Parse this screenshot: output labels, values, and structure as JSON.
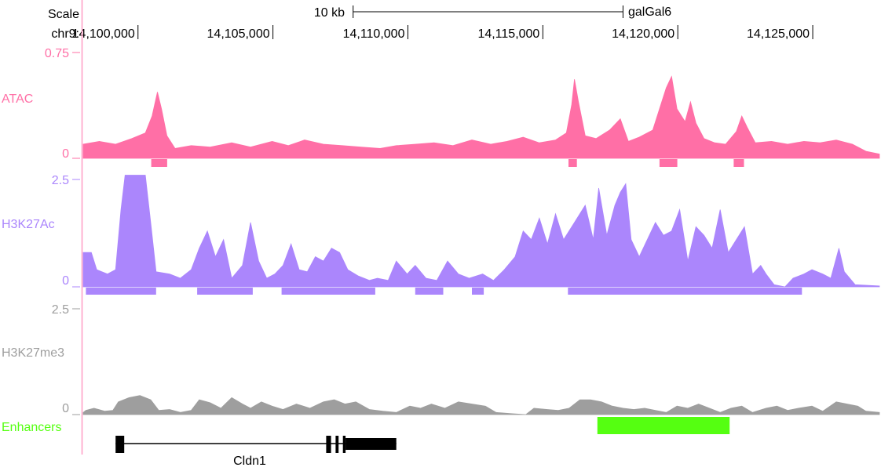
{
  "header": {
    "scale_label": "Scale",
    "scale_bar_label": "10 kb",
    "assembly": "galGal6",
    "chrom_label": "chr9:"
  },
  "chart_data": {
    "type": "area",
    "x_range": [
      14098000,
      14127500
    ],
    "x_ticks": [
      {
        "value": 14100000,
        "label": "14,100,000"
      },
      {
        "value": 14105000,
        "label": "14,105,000"
      },
      {
        "value": 14110000,
        "label": "14,110,000"
      },
      {
        "value": 14115000,
        "label": "14,115,000"
      },
      {
        "value": 14120000,
        "label": "14,120,000"
      },
      {
        "value": 14125000,
        "label": "14,125,000"
      }
    ],
    "scale_bar_range": [
      14108000,
      14118000
    ],
    "tracks": [
      {
        "id": "atac",
        "label": "ATAC",
        "color": "#ff6fa6",
        "ymax": 0.75,
        "ymax_label": "0.75",
        "ymin_label": "0",
        "points": [
          [
            14098000,
            0.1
          ],
          [
            14098600,
            0.12
          ],
          [
            14099200,
            0.1
          ],
          [
            14099800,
            0.14
          ],
          [
            14100300,
            0.18
          ],
          [
            14100550,
            0.3
          ],
          [
            14100750,
            0.47
          ],
          [
            14100900,
            0.35
          ],
          [
            14101100,
            0.16
          ],
          [
            14101400,
            0.07
          ],
          [
            14102000,
            0.09
          ],
          [
            14102700,
            0.08
          ],
          [
            14103500,
            0.11
          ],
          [
            14104200,
            0.08
          ],
          [
            14105000,
            0.12
          ],
          [
            14105600,
            0.09
          ],
          [
            14106200,
            0.13
          ],
          [
            14106900,
            0.1
          ],
          [
            14107600,
            0.09
          ],
          [
            14108300,
            0.08
          ],
          [
            14109000,
            0.07
          ],
          [
            14109600,
            0.09
          ],
          [
            14110300,
            0.1
          ],
          [
            14111000,
            0.11
          ],
          [
            14111700,
            0.09
          ],
          [
            14112400,
            0.13
          ],
          [
            14113100,
            0.1
          ],
          [
            14113700,
            0.12
          ],
          [
            14114300,
            0.15
          ],
          [
            14114900,
            0.11
          ],
          [
            14115500,
            0.13
          ],
          [
            14115900,
            0.18
          ],
          [
            14116100,
            0.38
          ],
          [
            14116200,
            0.56
          ],
          [
            14116350,
            0.4
          ],
          [
            14116600,
            0.16
          ],
          [
            14117000,
            0.14
          ],
          [
            14117500,
            0.2
          ],
          [
            14117900,
            0.28
          ],
          [
            14118200,
            0.12
          ],
          [
            14118600,
            0.15
          ],
          [
            14119100,
            0.2
          ],
          [
            14119400,
            0.38
          ],
          [
            14119600,
            0.5
          ],
          [
            14119800,
            0.58
          ],
          [
            14120000,
            0.35
          ],
          [
            14120300,
            0.26
          ],
          [
            14120500,
            0.4
          ],
          [
            14120700,
            0.25
          ],
          [
            14121000,
            0.14
          ],
          [
            14121400,
            0.11
          ],
          [
            14121800,
            0.1
          ],
          [
            14122200,
            0.19
          ],
          [
            14122400,
            0.3
          ],
          [
            14122600,
            0.22
          ],
          [
            14122900,
            0.11
          ],
          [
            14123500,
            0.12
          ],
          [
            14124100,
            0.1
          ],
          [
            14124700,
            0.12
          ],
          [
            14125300,
            0.11
          ],
          [
            14125900,
            0.13
          ],
          [
            14126500,
            0.1
          ],
          [
            14127000,
            0.05
          ],
          [
            14127500,
            0.03
          ]
        ],
        "peaks": [
          [
            14100520,
            14101110
          ],
          [
            14115980,
            14116290
          ],
          [
            14119350,
            14120010
          ],
          [
            14122100,
            14122480
          ]
        ]
      },
      {
        "id": "h3k27ac",
        "label": "H3K27Ac",
        "color": "#ab86fc",
        "ymax": 2.5,
        "ymax_label": "2.5",
        "ymin_label": "0",
        "points": [
          [
            14098000,
            0.8
          ],
          [
            14098300,
            0.8
          ],
          [
            14098500,
            0.4
          ],
          [
            14098900,
            0.3
          ],
          [
            14099200,
            0.4
          ],
          [
            14099400,
            1.8
          ],
          [
            14099550,
            2.6
          ],
          [
            14099800,
            2.6
          ],
          [
            14100100,
            2.6
          ],
          [
            14100300,
            2.6
          ],
          [
            14100500,
            1.5
          ],
          [
            14100700,
            0.35
          ],
          [
            14101200,
            0.3
          ],
          [
            14101600,
            0.2
          ],
          [
            14102000,
            0.4
          ],
          [
            14102300,
            0.9
          ],
          [
            14102600,
            1.3
          ],
          [
            14102900,
            0.7
          ],
          [
            14103200,
            1.1
          ],
          [
            14103500,
            0.2
          ],
          [
            14103900,
            0.5
          ],
          [
            14104200,
            1.5
          ],
          [
            14104500,
            0.6
          ],
          [
            14104800,
            0.2
          ],
          [
            14105100,
            0.3
          ],
          [
            14105400,
            0.5
          ],
          [
            14105700,
            1.0
          ],
          [
            14106000,
            0.4
          ],
          [
            14106300,
            0.35
          ],
          [
            14106600,
            0.7
          ],
          [
            14106900,
            0.6
          ],
          [
            14107200,
            0.9
          ],
          [
            14107500,
            0.8
          ],
          [
            14107800,
            0.4
          ],
          [
            14108200,
            0.25
          ],
          [
            14108600,
            0.15
          ],
          [
            14108900,
            0.2
          ],
          [
            14109300,
            0.15
          ],
          [
            14109600,
            0.6
          ],
          [
            14110000,
            0.3
          ],
          [
            14110300,
            0.5
          ],
          [
            14110700,
            0.2
          ],
          [
            14111100,
            0.15
          ],
          [
            14111500,
            0.6
          ],
          [
            14111900,
            0.3
          ],
          [
            14112300,
            0.2
          ],
          [
            14112800,
            0.3
          ],
          [
            14113200,
            0.15
          ],
          [
            14113600,
            0.4
          ],
          [
            14114000,
            0.7
          ],
          [
            14114300,
            1.3
          ],
          [
            14114600,
            1.1
          ],
          [
            14114900,
            1.6
          ],
          [
            14115200,
            1.0
          ],
          [
            14115500,
            1.7
          ],
          [
            14115800,
            1.1
          ],
          [
            14116200,
            1.5
          ],
          [
            14116600,
            1.9
          ],
          [
            14116900,
            1.1
          ],
          [
            14117100,
            2.3
          ],
          [
            14117400,
            1.2
          ],
          [
            14117700,
            1.9
          ],
          [
            14117900,
            2.2
          ],
          [
            14118100,
            2.4
          ],
          [
            14118300,
            1.1
          ],
          [
            14118600,
            0.7
          ],
          [
            14118900,
            1.1
          ],
          [
            14119200,
            1.5
          ],
          [
            14119500,
            1.2
          ],
          [
            14119800,
            1.3
          ],
          [
            14120100,
            1.8
          ],
          [
            14120400,
            0.6
          ],
          [
            14120700,
            1.4
          ],
          [
            14121000,
            1.2
          ],
          [
            14121300,
            0.9
          ],
          [
            14121600,
            1.8
          ],
          [
            14121900,
            0.8
          ],
          [
            14122200,
            1.1
          ],
          [
            14122500,
            1.4
          ],
          [
            14122800,
            0.3
          ],
          [
            14123100,
            0.5
          ],
          [
            14123300,
            0.3
          ],
          [
            14123600,
            0.05
          ],
          [
            14124000,
            0.0
          ],
          [
            14124300,
            0.2
          ],
          [
            14124700,
            0.3
          ],
          [
            14125000,
            0.4
          ],
          [
            14125400,
            0.3
          ],
          [
            14125700,
            0.2
          ],
          [
            14126000,
            0.9
          ],
          [
            14126200,
            0.35
          ],
          [
            14126600,
            0.05
          ],
          [
            14127500,
            0.02
          ]
        ],
        "peaks": [
          [
            14098100,
            14100700
          ],
          [
            14102220,
            14104280
          ],
          [
            14105350,
            14108820
          ],
          [
            14110300,
            14111340
          ],
          [
            14112400,
            14112840
          ],
          [
            14115960,
            14124630
          ]
        ]
      },
      {
        "id": "h3k27me3",
        "label": "H3K27me3",
        "color": "#9e9e9e",
        "ymax": 2.5,
        "ymax_label": "2.5",
        "ymin_label": "0",
        "points": [
          [
            14098000,
            0.05
          ],
          [
            14098100,
            0.1
          ],
          [
            14098400,
            0.15
          ],
          [
            14098800,
            0.08
          ],
          [
            14099100,
            0.1
          ],
          [
            14099300,
            0.3
          ],
          [
            14099700,
            0.4
          ],
          [
            14100100,
            0.45
          ],
          [
            14100500,
            0.35
          ],
          [
            14100800,
            0.1
          ],
          [
            14101200,
            0.12
          ],
          [
            14101600,
            0.05
          ],
          [
            14102000,
            0.1
          ],
          [
            14102300,
            0.35
          ],
          [
            14102700,
            0.28
          ],
          [
            14103100,
            0.15
          ],
          [
            14103500,
            0.4
          ],
          [
            14103900,
            0.25
          ],
          [
            14104200,
            0.15
          ],
          [
            14104600,
            0.3
          ],
          [
            14105000,
            0.2
          ],
          [
            14105400,
            0.12
          ],
          [
            14105900,
            0.25
          ],
          [
            14106400,
            0.15
          ],
          [
            14106900,
            0.3
          ],
          [
            14107300,
            0.35
          ],
          [
            14107700,
            0.25
          ],
          [
            14108100,
            0.3
          ],
          [
            14108600,
            0.12
          ],
          [
            14109100,
            0.08
          ],
          [
            14109600,
            0.05
          ],
          [
            14110100,
            0.2
          ],
          [
            14110500,
            0.15
          ],
          [
            14110900,
            0.25
          ],
          [
            14111400,
            0.15
          ],
          [
            14111900,
            0.3
          ],
          [
            14112400,
            0.25
          ],
          [
            14112900,
            0.2
          ],
          [
            14113300,
            0.05
          ],
          [
            14113900,
            0.02
          ],
          [
            14114400,
            0.0
          ],
          [
            14114700,
            0.15
          ],
          [
            14115200,
            0.12
          ],
          [
            14115600,
            0.1
          ],
          [
            14116000,
            0.15
          ],
          [
            14116400,
            0.35
          ],
          [
            14116800,
            0.35
          ],
          [
            14117200,
            0.3
          ],
          [
            14117600,
            0.2
          ],
          [
            14118000,
            0.15
          ],
          [
            14118400,
            0.12
          ],
          [
            14118800,
            0.15
          ],
          [
            14119200,
            0.1
          ],
          [
            14119600,
            0.05
          ],
          [
            14120000,
            0.2
          ],
          [
            14120400,
            0.15
          ],
          [
            14120800,
            0.25
          ],
          [
            14121200,
            0.15
          ],
          [
            14121600,
            0.05
          ],
          [
            14122000,
            0.15
          ],
          [
            14122400,
            0.2
          ],
          [
            14122800,
            0.05
          ],
          [
            14123300,
            0.15
          ],
          [
            14123700,
            0.2
          ],
          [
            14124100,
            0.1
          ],
          [
            14124500,
            0.15
          ],
          [
            14125000,
            0.2
          ],
          [
            14125400,
            0.08
          ],
          [
            14125900,
            0.3
          ],
          [
            14126300,
            0.25
          ],
          [
            14126700,
            0.2
          ],
          [
            14127000,
            0.08
          ],
          [
            14127500,
            0.05
          ]
        ]
      }
    ],
    "enhancers": {
      "label": "Enhancers",
      "color": "#55ff11",
      "regions": [
        [
          14117050,
          14121950
        ]
      ]
    },
    "gene": {
      "name": "Cldn1",
      "range": [
        14099200,
        14109600
      ],
      "exons": [
        {
          "start": 14099200,
          "end": 14099520,
          "kind": "utr"
        },
        {
          "start": 14107000,
          "end": 14107180,
          "kind": "cds"
        },
        {
          "start": 14107350,
          "end": 14107460,
          "kind": "cds"
        },
        {
          "start": 14107620,
          "end": 14107720,
          "kind": "cds"
        },
        {
          "start": 14107720,
          "end": 14109600,
          "kind": "utr"
        }
      ]
    }
  }
}
